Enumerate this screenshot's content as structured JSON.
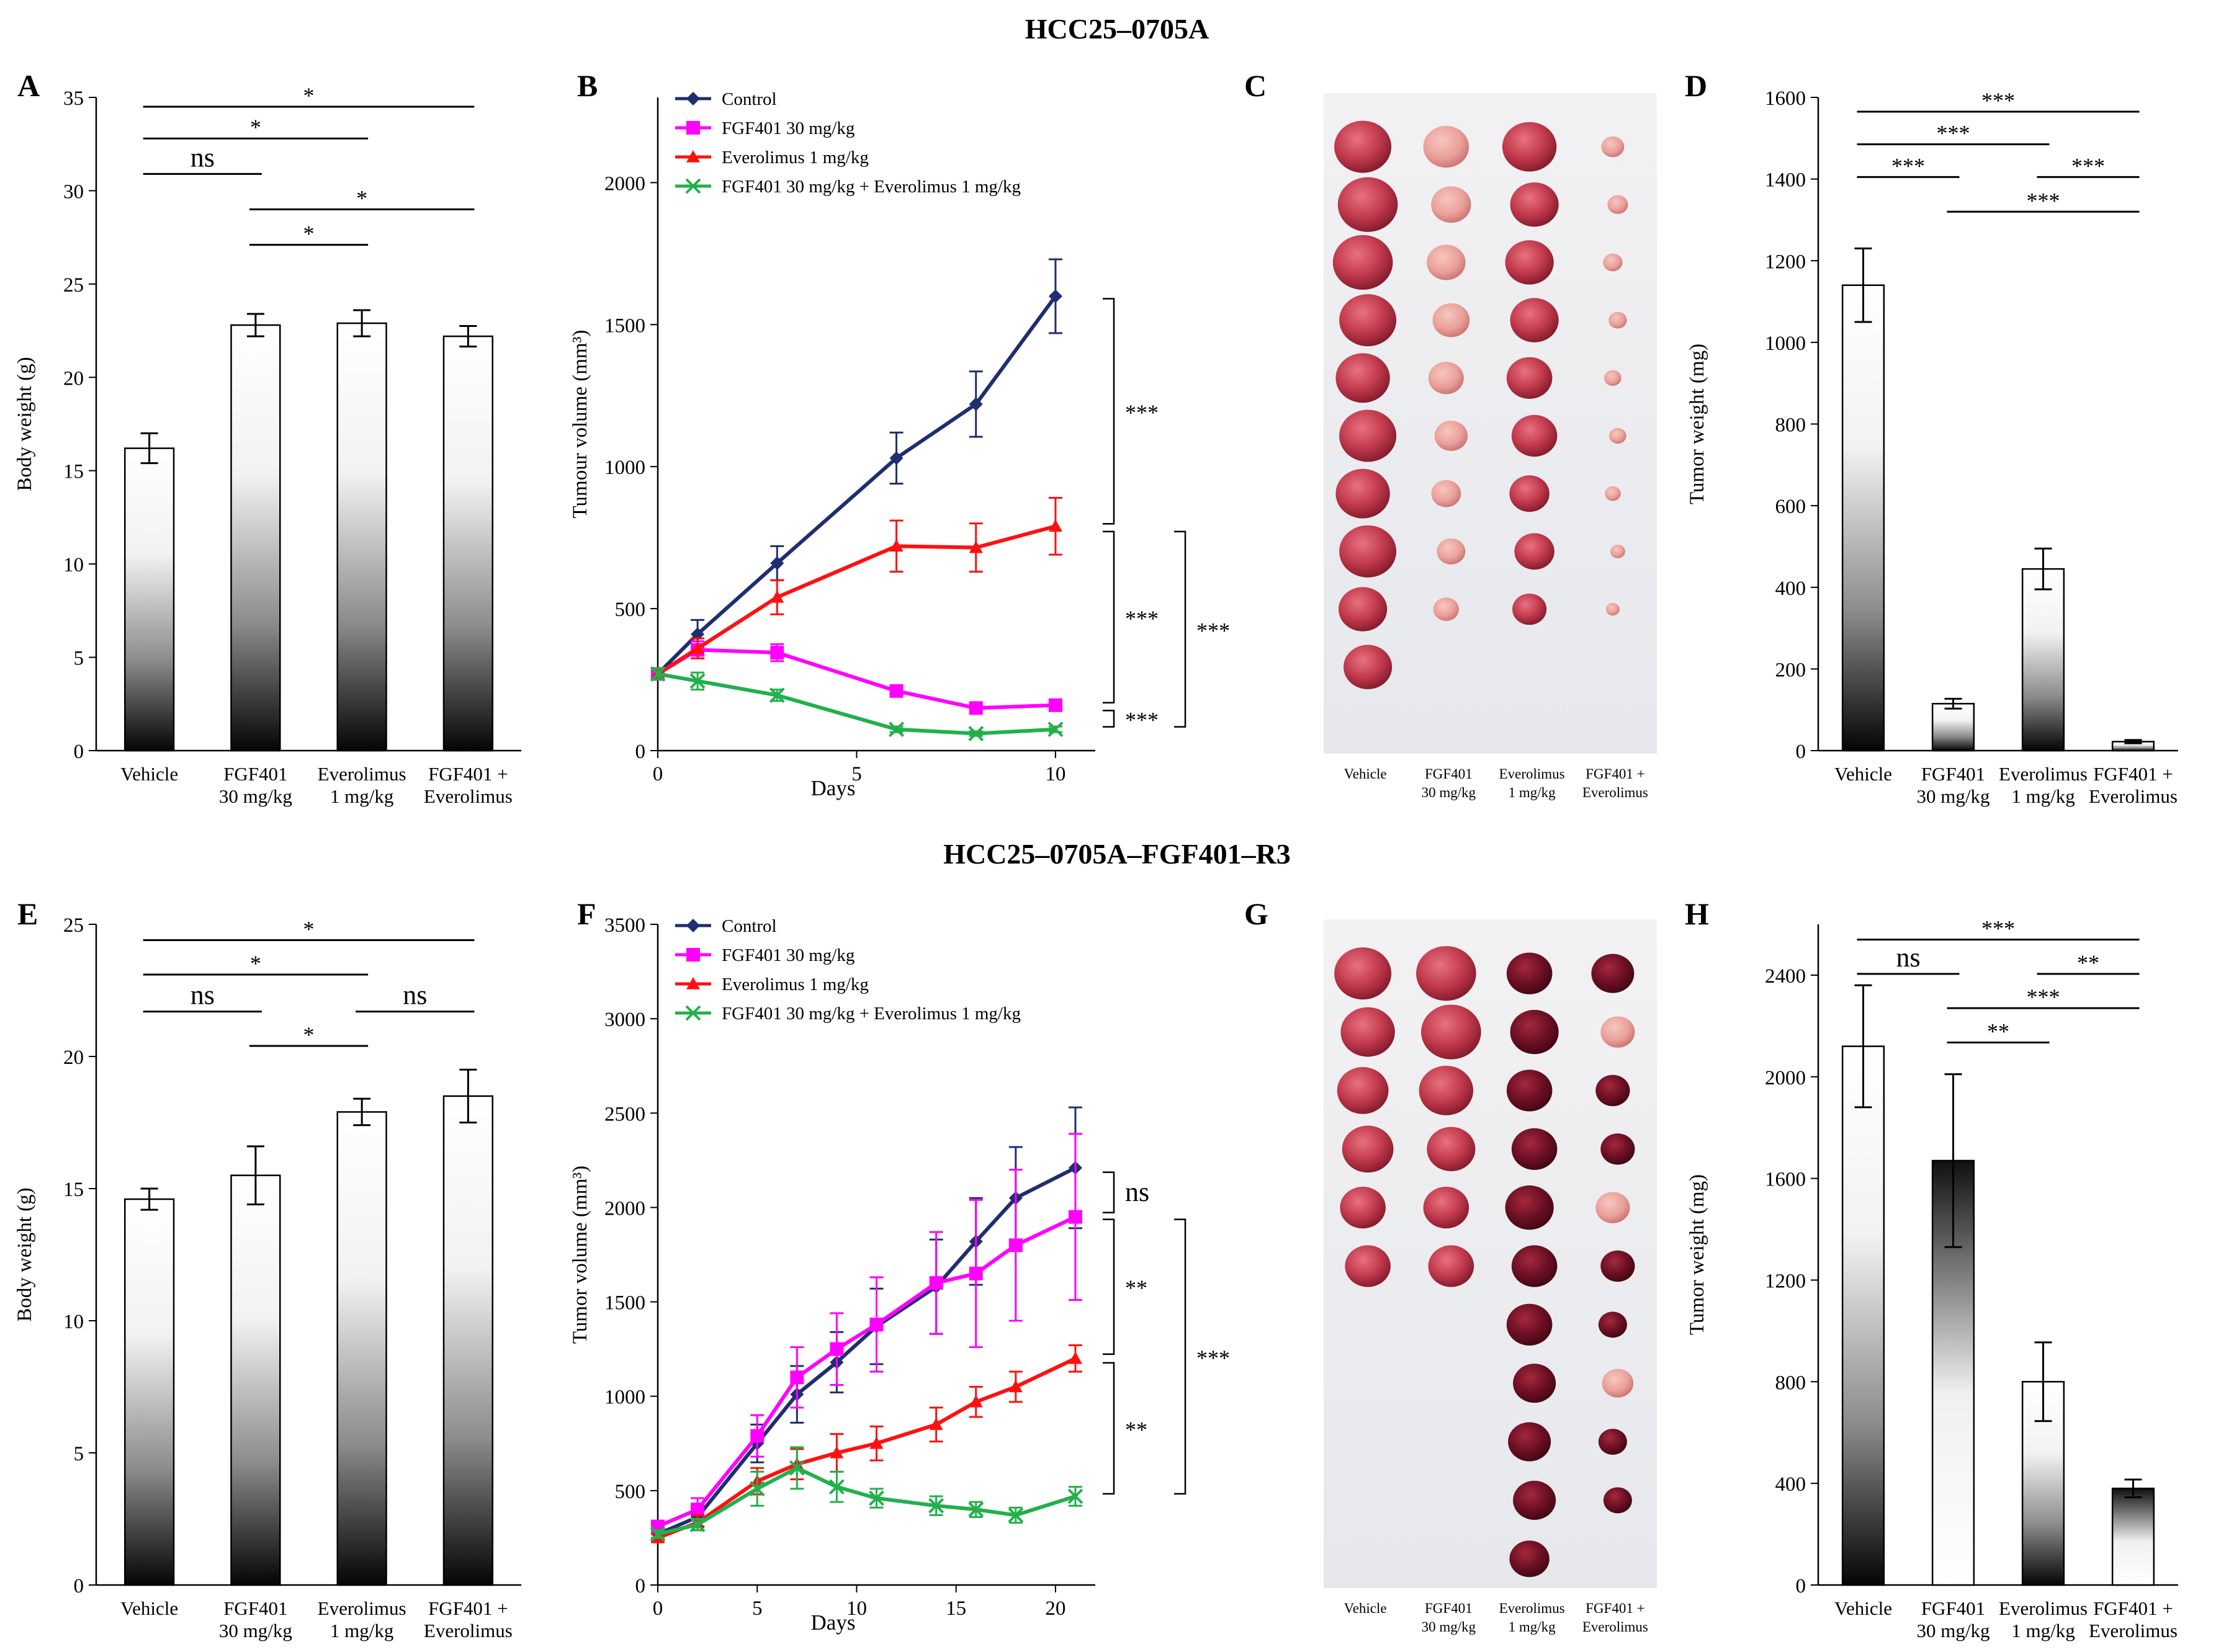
{
  "titles": {
    "top": "HCC25–0705A",
    "bottom": "HCC25–0705A–FGF401–R3"
  },
  "colors": {
    "control": "#1F2E6E",
    "fgf401": "#FF00FF",
    "everolimus": "#FF1010",
    "combo": "#22B04C",
    "tumor_dark": "#7A0F1F",
    "tumor_light": "#D2556A"
  },
  "chart_data": [
    {
      "panel": "A",
      "type": "bar",
      "ylabel": "Body weight (g)",
      "ylim": [
        0,
        35
      ],
      "yticks": [
        "0",
        "5",
        "10",
        "15",
        "20",
        "25",
        "30",
        "35"
      ],
      "gradient": "dark-bottom",
      "categories": [
        [
          "Vehicle"
        ],
        [
          "FGF401",
          "30 mg/kg"
        ],
        [
          "Everolimus",
          "1 mg/kg"
        ],
        [
          "FGF401 +",
          "Everolimus"
        ]
      ],
      "values": [
        16.2,
        22.8,
        22.9,
        22.2
      ],
      "errors": [
        0.8,
        0.6,
        0.7,
        0.55
      ],
      "significance": [
        {
          "from": 0,
          "to": 3,
          "label": "*",
          "y": 34.5
        },
        {
          "from": 0,
          "to": 2,
          "label": "*",
          "y": 32.8
        },
        {
          "from": 0,
          "to": 1,
          "label": "ns",
          "y": 30.9
        },
        {
          "from": 1,
          "to": 3,
          "label": "*",
          "y": 29.0
        },
        {
          "from": 1,
          "to": 2,
          "label": "*",
          "y": 27.1
        }
      ]
    },
    {
      "panel": "B",
      "type": "line",
      "xlabel": "Days",
      "ylabel": "Tumour volume (mm³)",
      "xlim": [
        0,
        11
      ],
      "ylim": [
        0,
        2300
      ],
      "xticks": [
        "0",
        "5",
        "10"
      ],
      "yticks": [
        "0",
        "500",
        "1000",
        "1500",
        "2000"
      ],
      "series": [
        {
          "name": "Control",
          "color": "control",
          "marker": "diamond",
          "x": [
            0,
            1,
            3,
            6,
            8,
            10
          ],
          "values": [
            270,
            410,
            660,
            1030,
            1220,
            1600
          ],
          "errors": [
            20,
            50,
            60,
            90,
            115,
            130
          ]
        },
        {
          "name": "FGF401 30 mg/kg",
          "color": "fgf401",
          "marker": "square",
          "x": [
            0,
            1,
            3,
            6,
            8,
            10
          ],
          "values": [
            270,
            355,
            345,
            210,
            150,
            160
          ],
          "errors": [
            20,
            30,
            30,
            20,
            15,
            15
          ]
        },
        {
          "name": "Everolimus 1 mg/kg",
          "color": "everolimus",
          "marker": "triangle",
          "x": [
            0,
            1,
            3,
            6,
            8,
            10
          ],
          "values": [
            270,
            360,
            540,
            720,
            715,
            790
          ],
          "errors": [
            20,
            35,
            60,
            90,
            85,
            100
          ]
        },
        {
          "name": "FGF401 30 mg/kg + Everolimus 1 mg/kg",
          "color": "combo",
          "marker": "x",
          "x": [
            0,
            1,
            3,
            6,
            8,
            10
          ],
          "values": [
            270,
            245,
            195,
            75,
            60,
            75
          ],
          "errors": [
            20,
            30,
            20,
            10,
            8,
            10
          ]
        }
      ],
      "brackets": [
        {
          "y1": 1600,
          "y2": 790,
          "label": "***",
          "level": 0
        },
        {
          "y1": 780,
          "y2": 160,
          "label": "***",
          "level": 0
        },
        {
          "y1": 150,
          "y2": 75,
          "label": "***",
          "level": 0
        },
        {
          "y1": 780,
          "y2": 75,
          "label": "***",
          "level": 1
        }
      ]
    },
    {
      "panel": "D",
      "type": "bar",
      "ylabel": "Tumor weight (mg)",
      "ylim": [
        0,
        1600
      ],
      "yticks": [
        "0",
        "200",
        "400",
        "600",
        "800",
        "1000",
        "1200",
        "1400",
        "1600"
      ],
      "gradient": "dark-bottom",
      "categories": [
        [
          "Vehicle"
        ],
        [
          "FGF401",
          "30 mg/kg"
        ],
        [
          "Everolimus",
          "1 mg/kg"
        ],
        [
          "FGF401 +",
          "Everolimus"
        ]
      ],
      "values": [
        1140,
        115,
        445,
        22
      ],
      "errors": [
        90,
        12,
        50,
        4
      ],
      "significance": [
        {
          "from": 0,
          "to": 3,
          "label": "***",
          "y": 1565
        },
        {
          "from": 0,
          "to": 2,
          "label": "***",
          "y": 1485
        },
        {
          "from": 0,
          "to": 1,
          "label": "***",
          "y": 1405
        },
        {
          "from": 2,
          "to": 3,
          "label": "***",
          "y": 1405
        },
        {
          "from": 1,
          "to": 3,
          "label": "***",
          "y": 1320
        }
      ]
    },
    {
      "panel": "E",
      "type": "bar",
      "ylabel": "Body weight (g)",
      "ylim": [
        0,
        25
      ],
      "yticks": [
        "0",
        "5",
        "10",
        "15",
        "20",
        "25"
      ],
      "gradient": "dark-bottom",
      "categories": [
        [
          "Vehicle"
        ],
        [
          "FGF401",
          "30 mg/kg"
        ],
        [
          "Everolimus",
          "1 mg/kg"
        ],
        [
          "FGF401 +",
          "Everolimus"
        ]
      ],
      "values": [
        14.6,
        15.5,
        17.9,
        18.5
      ],
      "errors": [
        0.4,
        1.1,
        0.5,
        1.0
      ],
      "significance": [
        {
          "from": 0,
          "to": 3,
          "label": "*",
          "y": 24.4
        },
        {
          "from": 0,
          "to": 2,
          "label": "*",
          "y": 23.1
        },
        {
          "from": 0,
          "to": 1,
          "label": "ns",
          "y": 21.7
        },
        {
          "from": 2,
          "to": 3,
          "label": "ns",
          "y": 21.7
        },
        {
          "from": 1,
          "to": 2,
          "label": "*",
          "y": 20.4
        }
      ]
    },
    {
      "panel": "F",
      "type": "line",
      "xlabel": "Days",
      "ylabel": "Tumor volume (mm³)",
      "xlim": [
        0,
        22
      ],
      "ylim": [
        0,
        3500
      ],
      "xticks": [
        "0",
        "5",
        "10",
        "15",
        "20"
      ],
      "yticks": [
        "0",
        "500",
        "1000",
        "1500",
        "2000",
        "2500",
        "3000",
        "3500"
      ],
      "series": [
        {
          "name": "Control",
          "color": "control",
          "marker": "diamond",
          "x": [
            0,
            2,
            5,
            7,
            9,
            11,
            14,
            16,
            18,
            21
          ],
          "values": [
            270,
            360,
            750,
            1010,
            1180,
            1370,
            1580,
            1820,
            2050,
            2210
          ],
          "errors": [
            20,
            50,
            100,
            150,
            160,
            200,
            250,
            230,
            270,
            320
          ]
        },
        {
          "name": "FGF401 30 mg/kg",
          "color": "fgf401",
          "marker": "square",
          "x": [
            0,
            2,
            5,
            7,
            9,
            11,
            14,
            16,
            18,
            21
          ],
          "values": [
            310,
            400,
            790,
            1100,
            1250,
            1380,
            1600,
            1650,
            1800,
            1950
          ],
          "errors": [
            20,
            60,
            110,
            160,
            190,
            250,
            270,
            390,
            400,
            440
          ]
        },
        {
          "name": "Everolimus 1 mg/kg",
          "color": "everolimus",
          "marker": "triangle",
          "x": [
            0,
            2,
            5,
            7,
            9,
            11,
            14,
            16,
            18,
            21
          ],
          "values": [
            250,
            330,
            550,
            640,
            700,
            750,
            850,
            970,
            1050,
            1200
          ],
          "errors": [
            20,
            40,
            70,
            80,
            100,
            90,
            90,
            80,
            80,
            70
          ]
        },
        {
          "name": "FGF401 30 mg/kg + Everolimus 1 mg/kg",
          "color": "combo",
          "marker": "x",
          "x": [
            0,
            2,
            5,
            7,
            9,
            11,
            14,
            16,
            18,
            21
          ],
          "values": [
            270,
            320,
            510,
            620,
            520,
            460,
            420,
            400,
            370,
            470
          ],
          "errors": [
            20,
            30,
            90,
            110,
            80,
            50,
            50,
            40,
            40,
            50
          ]
        }
      ],
      "brackets": [
        {
          "y1": 2200,
          "y2": 1960,
          "label": "ns",
          "level": 0
        },
        {
          "y1": 1950,
          "y2": 1210,
          "label": "**",
          "level": 0
        },
        {
          "y1": 1190,
          "y2": 470,
          "label": "**",
          "level": 0
        },
        {
          "y1": 1950,
          "y2": 470,
          "label": "***",
          "level": 1
        }
      ]
    },
    {
      "panel": "H",
      "type": "bar",
      "ylabel": "Tumor weight (mg)",
      "ylim": [
        0,
        2600
      ],
      "yticks": [
        "0",
        "400",
        "800",
        "1200",
        "1600",
        "2000",
        "2400"
      ],
      "gradient": "mixed",
      "categories": [
        [
          "Vehicle"
        ],
        [
          "FGF401",
          "30 mg/kg"
        ],
        [
          "Everolimus",
          "1 mg/kg"
        ],
        [
          "FGF401 +",
          "Everolimus"
        ]
      ],
      "values": [
        2120,
        1670,
        800,
        380
      ],
      "errors": [
        240,
        340,
        155,
        35
      ],
      "significance": [
        {
          "from": 0,
          "to": 3,
          "label": "***",
          "y": 2540
        },
        {
          "from": 0,
          "to": 1,
          "label": "ns",
          "y": 2405
        },
        {
          "from": 2,
          "to": 3,
          "label": "**",
          "y": 2405
        },
        {
          "from": 1,
          "to": 3,
          "label": "***",
          "y": 2270
        },
        {
          "from": 1,
          "to": 2,
          "label": "**",
          "y": 2135
        }
      ]
    }
  ],
  "photos": [
    {
      "panel": "C",
      "groups": [
        {
          "label": [
            "Vehicle"
          ],
          "tone": "red",
          "sizes": [
            1.0,
            1.05,
            1.05,
            1.0,
            0.95,
            1.0,
            0.95,
            1.0,
            0.85,
            0.85
          ]
        },
        {
          "label": [
            "FGF401",
            "30 mg/kg"
          ],
          "tone": "pale",
          "sizes": [
            0.8,
            0.7,
            0.68,
            0.65,
            0.62,
            0.58,
            0.52,
            0.5,
            0.45
          ]
        },
        {
          "label": [
            "Everolimus",
            "1 mg/kg"
          ],
          "tone": "red",
          "sizes": [
            0.95,
            0.85,
            0.85,
            0.85,
            0.8,
            0.8,
            0.7,
            0.7,
            0.6
          ]
        },
        {
          "label": [
            "FGF401 +",
            "Everolimus"
          ],
          "tone": "pale",
          "sizes": [
            0.4,
            0.36,
            0.34,
            0.32,
            0.3,
            0.3,
            0.28,
            0.26,
            0.24
          ]
        }
      ]
    },
    {
      "panel": "G",
      "groups": [
        {
          "label": [
            "Vehicle"
          ],
          "tone": "red",
          "sizes": [
            1.0,
            0.95,
            0.9,
            0.9,
            0.8,
            0.8
          ]
        },
        {
          "label": [
            "FGF401",
            "30 mg/kg"
          ],
          "tone": "red",
          "sizes": [
            1.05,
            1.05,
            0.95,
            0.85,
            0.8,
            0.8
          ]
        },
        {
          "label": [
            "Everolimus",
            "1 mg/kg"
          ],
          "tone": "dark",
          "sizes": [
            0.8,
            0.85,
            0.8,
            0.8,
            0.85,
            0.8,
            0.8,
            0.75,
            0.75,
            0.75,
            0.7
          ]
        },
        {
          "label": [
            "FGF401 +",
            "Everolimus"
          ],
          "tone": "mixed",
          "sizes": [
            0.75,
            0.6,
            0.6,
            0.6,
            0.6,
            0.6,
            0.5,
            0.55,
            0.5,
            0.5
          ]
        }
      ]
    }
  ]
}
